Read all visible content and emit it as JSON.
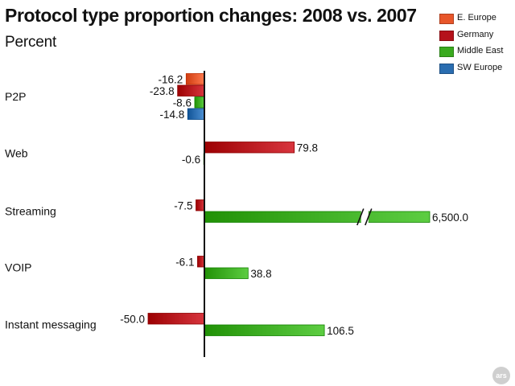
{
  "chart_data": {
    "type": "bar",
    "orientation": "horizontal",
    "title": "Protocol type proportion changes: 2008 vs. 2007",
    "subtitle": "Percent",
    "categories": [
      "P2P",
      "Web",
      "Streaming",
      "VOIP",
      "Instant messaging"
    ],
    "series": [
      {
        "name": "E. Europe",
        "color": "#e8562a",
        "values": [
          -16.2,
          null,
          null,
          null,
          null
        ]
      },
      {
        "name": "Germany",
        "color": "#b5121b",
        "values": [
          -23.8,
          79.8,
          -7.5,
          -6.1,
          -50.0
        ]
      },
      {
        "name": "Middle East",
        "color": "#3aaa1f",
        "values": [
          -8.6,
          -0.6,
          6500.0,
          38.8,
          106.5
        ]
      },
      {
        "name": "SW Europe",
        "color": "#2a6db0",
        "values": [
          -14.8,
          null,
          null,
          null,
          null
        ]
      }
    ],
    "data_labels": [
      [
        "-16.2",
        "",
        "",
        "",
        ""
      ],
      [
        "-23.8",
        "79.8",
        "-7.5",
        "-6.1",
        "-50.0"
      ],
      [
        "-8.6",
        "-0.6",
        "6,500.0",
        "38.8",
        "106.5"
      ],
      [
        "-14.8",
        "",
        "",
        "",
        ""
      ]
    ],
    "axis_break": {
      "category": "Streaming",
      "series": "Middle East"
    },
    "legend_position": "top-right",
    "grid": false
  },
  "badge": "ars"
}
